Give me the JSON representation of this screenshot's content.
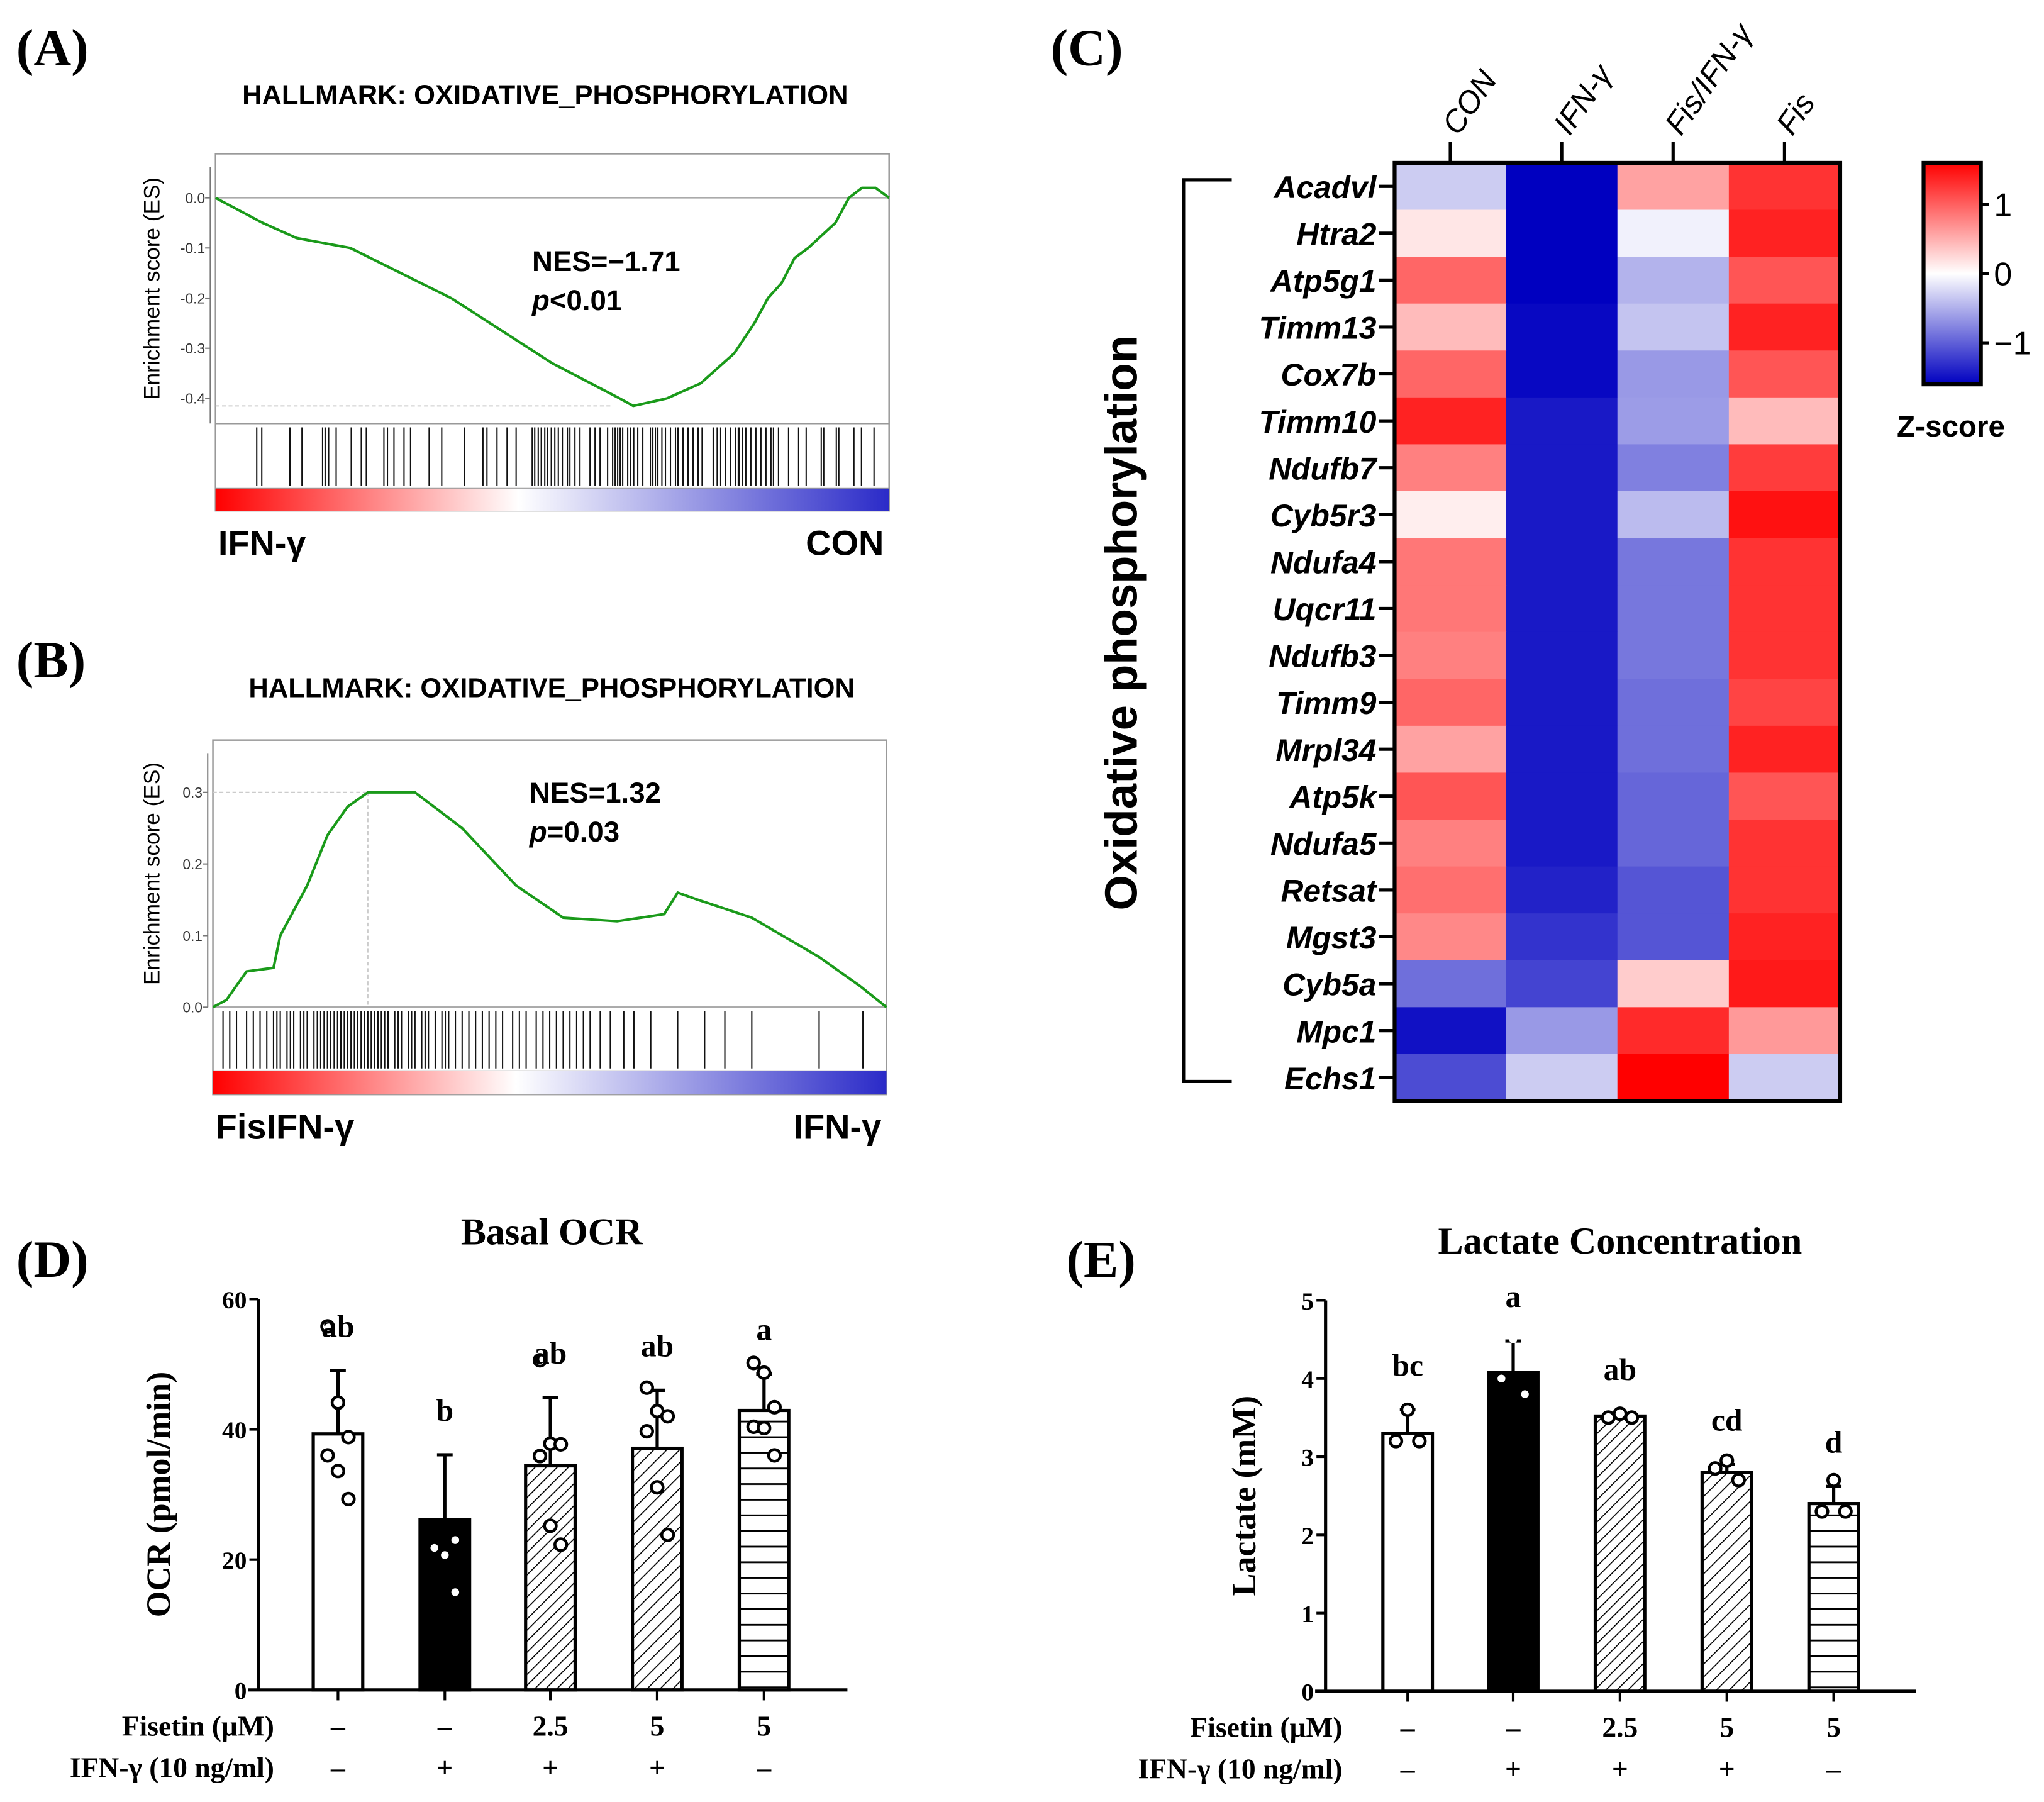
{
  "panel_labels": {
    "a": "(A)",
    "b": "(B)",
    "c": "(C)",
    "d": "(D)",
    "e": "(E)"
  },
  "colors": {
    "es_line": "#1a9a1a",
    "heat_pos": "#ff0000",
    "heat_neg": "#0000c0",
    "grad_red": "#ff0000",
    "grad_blue": "#2a2ac8"
  },
  "chart_data": [
    {
      "id": "A",
      "type": "line",
      "title": "HALLMARK: OXIDATIVE_PHOSPHORYLATION",
      "ylabel": "Enrichment score (ES)",
      "ylim": [
        -0.45,
        0.088
      ],
      "xlim": [
        0,
        1340
      ],
      "yticks": [
        0.0,
        -0.1,
        -0.2,
        -0.3,
        -0.4
      ],
      "ytick_labels": [
        "0.0",
        "-0.1",
        "-0.2",
        "-0.3",
        "-0.4"
      ],
      "nes": "NES=−1.71",
      "p_italic": "p",
      "p_rest": "<0.01",
      "left_label": "IFN-γ",
      "right_label": "CON",
      "min_es": -0.415,
      "min_x": 790,
      "curve": [
        [
          0,
          0
        ],
        [
          94,
          -0.05
        ],
        [
          161,
          -0.08
        ],
        [
          268,
          -0.1
        ],
        [
          469,
          -0.2
        ],
        [
          670,
          -0.33
        ],
        [
          804,
          -0.4
        ],
        [
          831,
          -0.415
        ],
        [
          898,
          -0.4
        ],
        [
          965,
          -0.37
        ],
        [
          1032,
          -0.31
        ],
        [
          1072,
          -0.25
        ],
        [
          1099,
          -0.2
        ],
        [
          1126,
          -0.17
        ],
        [
          1152,
          -0.12
        ],
        [
          1179,
          -0.1
        ],
        [
          1233,
          -0.05
        ],
        [
          1260,
          0.0
        ],
        [
          1286,
          0.02
        ],
        [
          1313,
          0.02
        ],
        [
          1340,
          0
        ]
      ],
      "hits": [
        82,
        92,
        148,
        172,
        213,
        218,
        225,
        240,
        270,
        290,
        300,
        335,
        342,
        355,
        375,
        388,
        425,
        450,
        495,
        532,
        540,
        560,
        580,
        598,
        630,
        635,
        642,
        648,
        655,
        660,
        668,
        675,
        682,
        690,
        700,
        705,
        715,
        725,
        745,
        755,
        765,
        780,
        790,
        795,
        800,
        805,
        810,
        820,
        825,
        832,
        840,
        850,
        865,
        870,
        875,
        880,
        888,
        895,
        905,
        915,
        920,
        930,
        940,
        950,
        960,
        968,
        990,
        998,
        1005,
        1015,
        1025,
        1035,
        1040,
        1042,
        1048,
        1055,
        1065,
        1075,
        1085,
        1095,
        1105,
        1110,
        1120,
        1140,
        1160,
        1175,
        1205,
        1210,
        1235,
        1240,
        1270,
        1285,
        1310
      ]
    },
    {
      "id": "B",
      "type": "line",
      "title": "HALLMARK: OXIDATIVE_PHOSPHORYLATION",
      "ylabel": "Enrichment score (ES)",
      "ylim": [
        0,
        0.373
      ],
      "xlim": [
        0,
        1000
      ],
      "yticks": [
        0.0,
        0.1,
        0.2,
        0.3
      ],
      "ytick_labels": [
        "0.0",
        "0.1",
        "0.2",
        "0.3"
      ],
      "nes": "NES=1.32",
      "p_italic": "p",
      "p_rest": "=0.03",
      "left_label": "FisIFN-γ",
      "right_label": "IFN-γ",
      "max_es": 0.3,
      "max_x": 230,
      "curve": [
        [
          0,
          0
        ],
        [
          20,
          0.01
        ],
        [
          50,
          0.05
        ],
        [
          90,
          0.055
        ],
        [
          100,
          0.1
        ],
        [
          140,
          0.17
        ],
        [
          170,
          0.24
        ],
        [
          200,
          0.28
        ],
        [
          230,
          0.3
        ],
        [
          300,
          0.3
        ],
        [
          370,
          0.25
        ],
        [
          450,
          0.17
        ],
        [
          520,
          0.125
        ],
        [
          600,
          0.12
        ],
        [
          670,
          0.13
        ],
        [
          690,
          0.16
        ],
        [
          720,
          0.15
        ],
        [
          800,
          0.125
        ],
        [
          900,
          0.07
        ],
        [
          960,
          0.03
        ],
        [
          1000,
          0
        ]
      ],
      "hits": [
        15,
        25,
        35,
        50,
        60,
        70,
        80,
        90,
        95,
        100,
        110,
        115,
        120,
        130,
        135,
        140,
        150,
        155,
        160,
        165,
        170,
        175,
        180,
        185,
        190,
        195,
        200,
        205,
        210,
        215,
        220,
        225,
        230,
        235,
        240,
        245,
        250,
        255,
        260,
        270,
        275,
        280,
        290,
        295,
        300,
        310,
        315,
        320,
        330,
        340,
        345,
        350,
        360,
        370,
        380,
        390,
        400,
        410,
        420,
        430,
        445,
        455,
        465,
        480,
        490,
        500,
        510,
        520,
        530,
        540,
        550,
        560,
        575,
        590,
        610,
        625,
        650,
        690,
        730,
        760,
        800,
        900,
        965
      ]
    },
    {
      "id": "C",
      "type": "heatmap",
      "group_label": "Oxidative phosphorylation",
      "columns": [
        "CON",
        "IFN-γ",
        "Fis/IFN-γ",
        "Fis"
      ],
      "rows": [
        "Acadvl",
        "Htra2",
        "Atp5g1",
        "Timm13",
        "Cox7b",
        "Timm10",
        "Ndufb7",
        "Cyb5r3",
        "Ndufa4",
        "Uqcr11",
        "Ndufb3",
        "Timm9",
        "Mrpl34",
        "Atp5k",
        "Ndufa5",
        "Retsat",
        "Mgst3",
        "Cyb5a",
        "Mpc1",
        "Echs1"
      ],
      "values": [
        [
          -0.3,
          -1.5,
          0.55,
          1.2
        ],
        [
          0.15,
          -1.5,
          -0.08,
          1.3
        ],
        [
          0.9,
          -1.5,
          -0.45,
          1.0
        ],
        [
          0.4,
          -1.45,
          -0.35,
          1.3
        ],
        [
          0.9,
          -1.45,
          -0.6,
          1.0
        ],
        [
          1.3,
          -1.35,
          -0.58,
          0.4
        ],
        [
          0.75,
          -1.35,
          -0.75,
          1.15
        ],
        [
          0.1,
          -1.35,
          -0.4,
          1.4
        ],
        [
          0.8,
          -1.35,
          -0.8,
          1.2
        ],
        [
          0.8,
          -1.35,
          -0.8,
          1.2
        ],
        [
          0.75,
          -1.35,
          -0.8,
          1.2
        ],
        [
          0.9,
          -1.35,
          -0.85,
          1.1
        ],
        [
          0.55,
          -1.35,
          -0.85,
          1.3
        ],
        [
          1.0,
          -1.35,
          -0.9,
          1.0
        ],
        [
          0.75,
          -1.35,
          -0.9,
          1.2
        ],
        [
          0.85,
          -1.3,
          -1.0,
          1.2
        ],
        [
          0.7,
          -1.2,
          -1.0,
          1.3
        ],
        [
          -0.85,
          -1.1,
          0.3,
          1.35
        ],
        [
          -1.4,
          -0.6,
          1.25,
          0.6
        ],
        [
          -1.05,
          -0.3,
          1.5,
          -0.3
        ]
      ],
      "colorbar": {
        "title": "Z-score",
        "range": [
          -1.6,
          1.6
        ],
        "ticks": [
          1,
          0,
          -1
        ],
        "tick_labels": [
          "1",
          "0",
          "−1"
        ]
      }
    },
    {
      "id": "D",
      "type": "bar",
      "title": "Basal OCR",
      "ylabel": "OCR (pmol/min)",
      "ylim": [
        0,
        60
      ],
      "yticks": [
        0,
        20,
        40,
        60
      ],
      "row_labels": [
        "Fisetin (μM)",
        "IFN-γ (10 ng/ml)"
      ],
      "groups": [
        {
          "fisetin": "–",
          "ifn": "–",
          "mean": 39.3,
          "sd": 9.7,
          "letter": "ab",
          "pattern": "white",
          "points": [
            55.8,
            44.1,
            38.8,
            36,
            33.6,
            29.3
          ]
        },
        {
          "fisetin": "–",
          "ifn": "+",
          "mean": 26.1,
          "sd": 10,
          "letter": "b",
          "pattern": "black",
          "points": [
            39.5,
            37.8,
            23,
            21.8,
            20.7,
            15
          ]
        },
        {
          "fisetin": "2.5",
          "ifn": "+",
          "mean": 34.4,
          "sd": 10.5,
          "letter": "ab",
          "pattern": "hatch",
          "points": [
            50.6,
            37.8,
            37.7,
            35.9,
            25.2,
            22.3
          ]
        },
        {
          "fisetin": "5",
          "ifn": "+",
          "mean": 37.1,
          "sd": 8.9,
          "letter": "ab",
          "pattern": "hatch2",
          "points": [
            46.4,
            42.8,
            42,
            39.7,
            31.1,
            23.8
          ]
        },
        {
          "fisetin": "5",
          "ifn": "–",
          "mean": 42.9,
          "sd": 5.6,
          "letter": "a",
          "pattern": "hlines",
          "points": [
            50.2,
            48.7,
            43.4,
            40.4,
            40.2,
            36
          ]
        }
      ]
    },
    {
      "id": "E",
      "type": "bar",
      "title": "Lactate Concentration",
      "ylabel": "Lactate (mM)",
      "ylim": [
        0,
        5
      ],
      "yticks": [
        0,
        1,
        2,
        3,
        4,
        5
      ],
      "row_labels": [
        "Fisetin (μM)",
        "IFN-γ (10 ng/ml)"
      ],
      "groups": [
        {
          "fisetin": "–",
          "ifn": "–",
          "mean": 3.3,
          "sd": 0.3,
          "letter": "bc",
          "pattern": "white",
          "points": [
            3.6,
            3.2,
            3.2
          ]
        },
        {
          "fisetin": "–",
          "ifn": "+",
          "mean": 4.08,
          "sd": 0.4,
          "letter": "a",
          "pattern": "black",
          "points": [
            4.5,
            4.0,
            3.8
          ]
        },
        {
          "fisetin": "2.5",
          "ifn": "+",
          "mean": 3.52,
          "sd": 0.03,
          "letter": "ab",
          "pattern": "hatch",
          "points": [
            3.55,
            3.5,
            3.5
          ]
        },
        {
          "fisetin": "5",
          "ifn": "+",
          "mean": 2.8,
          "sd": 0.1,
          "letter": "cd",
          "pattern": "hatch2",
          "points": [
            2.95,
            2.85,
            2.7
          ]
        },
        {
          "fisetin": "5",
          "ifn": "–",
          "mean": 2.4,
          "sd": 0.22,
          "letter": "d",
          "pattern": "hlines",
          "points": [
            2.7,
            2.3,
            2.3
          ]
        }
      ]
    }
  ]
}
